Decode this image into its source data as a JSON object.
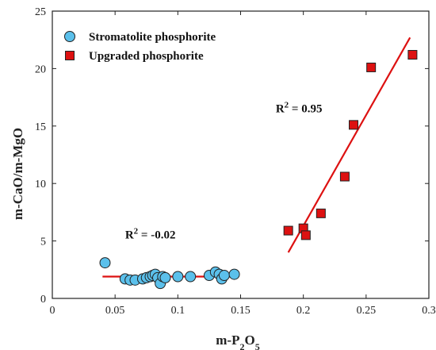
{
  "chart_data": {
    "type": "scatter",
    "title": "",
    "xlabel": {
      "base": "m-P",
      "sub": "2",
      "mid": "O",
      "sub2": "5"
    },
    "ylabel": "m-CaO/m-MgO",
    "xlim": [
      0,
      0.3
    ],
    "ylim": [
      0,
      25
    ],
    "xticks": [
      0,
      0.05,
      0.1,
      0.15,
      0.2,
      0.25,
      0.3
    ],
    "xtick_labels": [
      "0",
      "0.05",
      "0.1",
      "0.15",
      "0.2",
      "0.25",
      "0.3"
    ],
    "yticks": [
      0,
      5,
      10,
      15,
      20,
      25
    ],
    "ytick_labels": [
      "0",
      "5",
      "10",
      "15",
      "20",
      "25"
    ],
    "grid": false,
    "legend_position": "top-left",
    "series": [
      {
        "name": "Stromatolite phosphorite",
        "marker": "circle",
        "color": "#5bc0eb",
        "points": [
          [
            0.042,
            3.1
          ],
          [
            0.058,
            1.7
          ],
          [
            0.062,
            1.6
          ],
          [
            0.066,
            1.6
          ],
          [
            0.072,
            1.7
          ],
          [
            0.075,
            1.8
          ],
          [
            0.078,
            1.9
          ],
          [
            0.08,
            2.0
          ],
          [
            0.082,
            2.1
          ],
          [
            0.084,
            1.8
          ],
          [
            0.086,
            1.3
          ],
          [
            0.088,
            1.9
          ],
          [
            0.09,
            1.8
          ],
          [
            0.1,
            1.9
          ],
          [
            0.11,
            1.9
          ],
          [
            0.125,
            2.0
          ],
          [
            0.13,
            2.3
          ],
          [
            0.133,
            2.1
          ],
          [
            0.135,
            1.7
          ],
          [
            0.137,
            2.0
          ],
          [
            0.145,
            2.1
          ]
        ],
        "fit": {
          "x": [
            0.04,
            0.145
          ],
          "y": [
            1.9,
            1.9
          ]
        },
        "r2_label": "R² = -0.02",
        "r2_base": "R",
        "r2_sup": "2",
        "r2_value": " = -0.02"
      },
      {
        "name": "Upgraded phosphorite",
        "marker": "square",
        "color": "#dd1111",
        "points": [
          [
            0.188,
            5.9
          ],
          [
            0.2,
            6.1
          ],
          [
            0.202,
            5.5
          ],
          [
            0.214,
            7.4
          ],
          [
            0.233,
            10.6
          ],
          [
            0.24,
            15.1
          ],
          [
            0.254,
            20.1
          ],
          [
            0.287,
            21.2
          ]
        ],
        "fit": {
          "x": [
            0.188,
            0.285
          ],
          "y": [
            4.0,
            22.7
          ]
        },
        "r2_label": "R² = 0.95",
        "r2_base": "R",
        "r2_sup": "2",
        "r2_value": " = 0.95"
      }
    ],
    "annotations": [
      {
        "series_index": 0,
        "anchor_x": 0.058,
        "anchor_y": 5.2
      },
      {
        "series_index": 1,
        "anchor_x": 0.178,
        "anchor_y": 16.2
      }
    ],
    "colors": {
      "axis": "#222222",
      "fit_line": "#dd1111",
      "marker_edge": "#222222"
    }
  }
}
